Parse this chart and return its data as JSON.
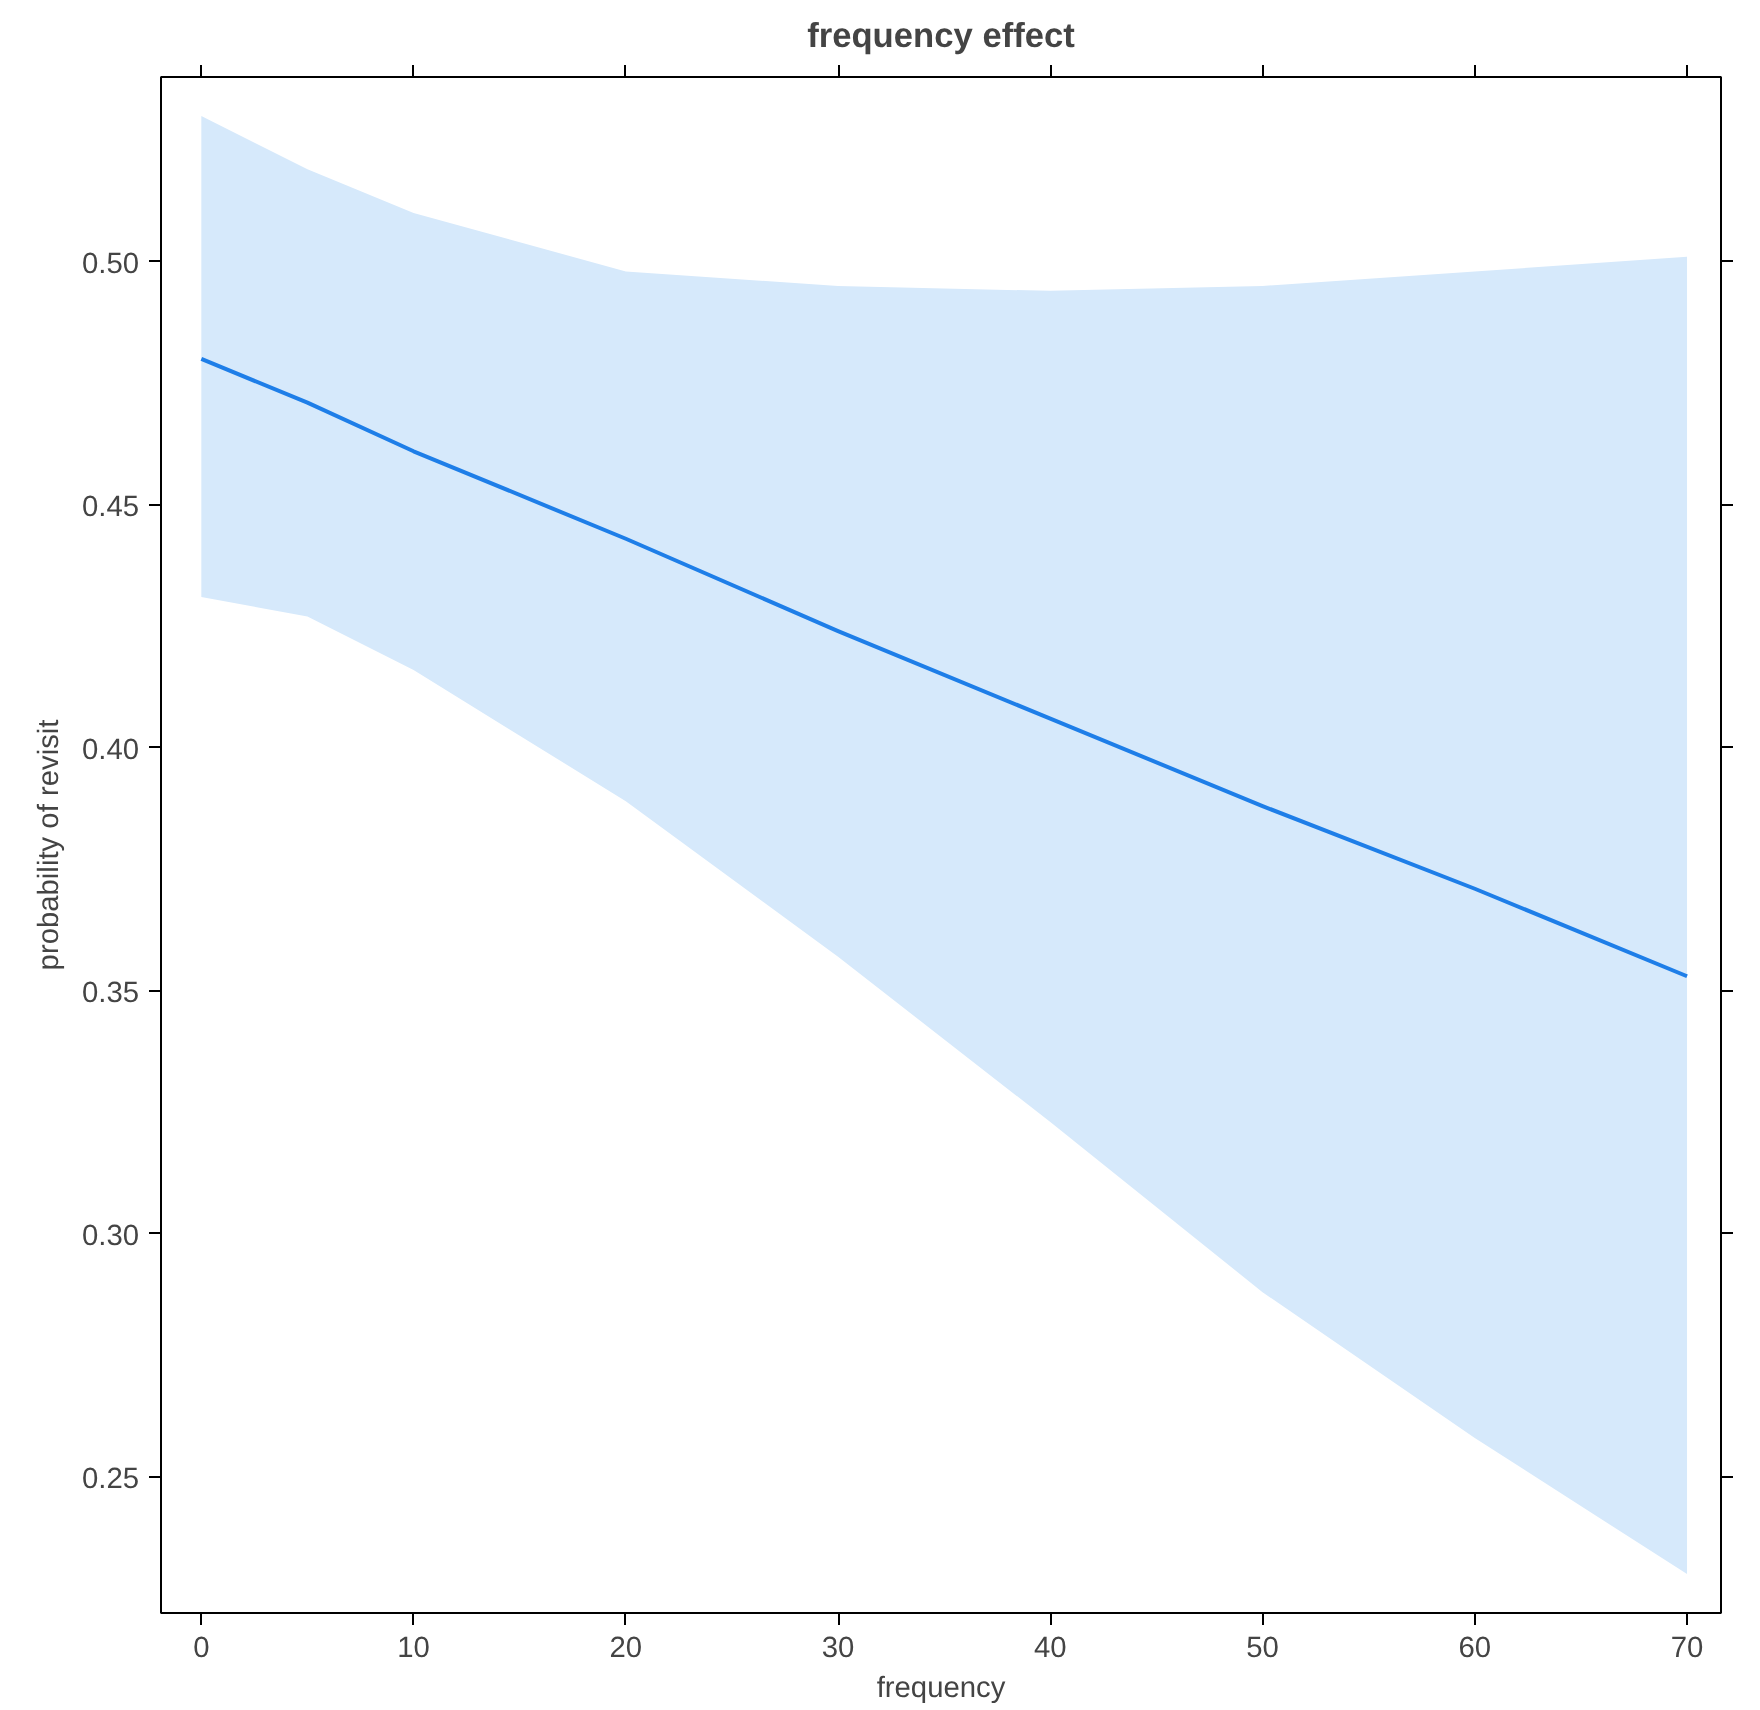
{
  "chart_data": {
    "type": "line",
    "title": "frequency effect",
    "xlabel": "frequency",
    "ylabel": "probability of revisit",
    "x": [
      0,
      5,
      10,
      20,
      30,
      40,
      50,
      60,
      70
    ],
    "series": [
      {
        "color": "#1e7ee8",
        "values": [
          0.48,
          0.471,
          0.461,
          0.443,
          0.424,
          0.406,
          0.388,
          0.371,
          0.353
        ],
        "lower": [
          0.431,
          0.427,
          0.416,
          0.389,
          0.357,
          0.323,
          0.288,
          0.258,
          0.23
        ],
        "upper": [
          0.53,
          0.519,
          0.51,
          0.498,
          0.495,
          0.494,
          0.495,
          0.498,
          0.501
        ]
      }
    ],
    "xlim": [
      -1.9,
      71.6
    ],
    "ylim": [
      0.222,
      0.538
    ],
    "xticks": [
      0,
      10,
      20,
      30,
      40,
      50,
      60,
      70
    ],
    "yticks": [
      {
        "value": 0.25,
        "label": "0.25"
      },
      {
        "value": 0.3,
        "label": "0.30"
      },
      {
        "value": 0.35,
        "label": "0.35"
      },
      {
        "value": 0.4,
        "label": "0.40"
      },
      {
        "value": 0.45,
        "label": "0.45"
      },
      {
        "value": 0.5,
        "label": "0.50"
      }
    ],
    "grid": false,
    "line_style": "solid"
  }
}
